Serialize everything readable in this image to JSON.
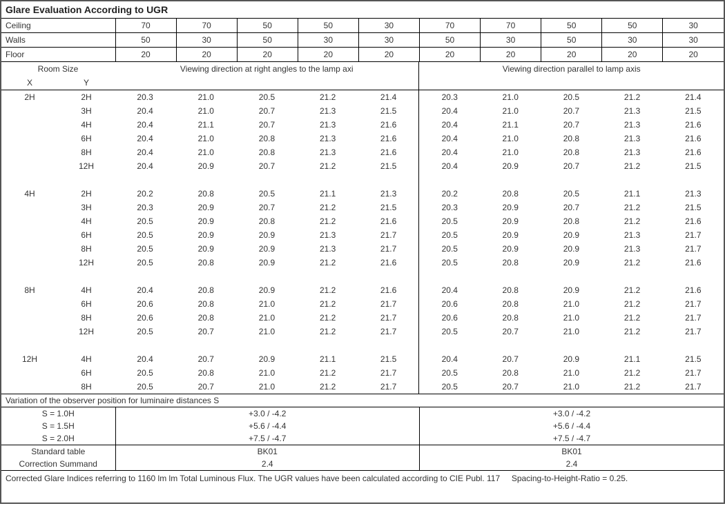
{
  "title": "Glare Evaluation According to UGR",
  "header_rows": [
    {
      "label": "Ceiling",
      "vals": [
        "70",
        "70",
        "50",
        "50",
        "30",
        "70",
        "70",
        "50",
        "50",
        "30"
      ]
    },
    {
      "label": "Walls",
      "vals": [
        "50",
        "30",
        "50",
        "30",
        "30",
        "50",
        "30",
        "50",
        "30",
        "30"
      ]
    },
    {
      "label": "Floor",
      "vals": [
        "20",
        "20",
        "20",
        "20",
        "20",
        "20",
        "20",
        "20",
        "20",
        "20"
      ]
    }
  ],
  "room_size_label": "Room Size",
  "x_label": "X",
  "y_label": "Y",
  "dir_left": "Viewing direction at right angles to the lamp axi",
  "dir_right": "Viewing direction parallel to lamp axis",
  "groups": [
    {
      "x": "2H",
      "rows": [
        {
          "y": "2H",
          "l": [
            "20.3",
            "21.0",
            "20.5",
            "21.2",
            "21.4"
          ],
          "r": [
            "20.3",
            "21.0",
            "20.5",
            "21.2",
            "21.4"
          ]
        },
        {
          "y": "3H",
          "l": [
            "20.4",
            "21.0",
            "20.7",
            "21.3",
            "21.5"
          ],
          "r": [
            "20.4",
            "21.0",
            "20.7",
            "21.3",
            "21.5"
          ]
        },
        {
          "y": "4H",
          "l": [
            "20.4",
            "21.1",
            "20.7",
            "21.3",
            "21.6"
          ],
          "r": [
            "20.4",
            "21.1",
            "20.7",
            "21.3",
            "21.6"
          ]
        },
        {
          "y": "6H",
          "l": [
            "20.4",
            "21.0",
            "20.8",
            "21.3",
            "21.6"
          ],
          "r": [
            "20.4",
            "21.0",
            "20.8",
            "21.3",
            "21.6"
          ]
        },
        {
          "y": "8H",
          "l": [
            "20.4",
            "21.0",
            "20.8",
            "21.3",
            "21.6"
          ],
          "r": [
            "20.4",
            "21.0",
            "20.8",
            "21.3",
            "21.6"
          ]
        },
        {
          "y": "12H",
          "l": [
            "20.4",
            "20.9",
            "20.7",
            "21.2",
            "21.5"
          ],
          "r": [
            "20.4",
            "20.9",
            "20.7",
            "21.2",
            "21.5"
          ]
        }
      ]
    },
    {
      "x": "4H",
      "rows": [
        {
          "y": "2H",
          "l": [
            "20.2",
            "20.8",
            "20.5",
            "21.1",
            "21.3"
          ],
          "r": [
            "20.2",
            "20.8",
            "20.5",
            "21.1",
            "21.3"
          ]
        },
        {
          "y": "3H",
          "l": [
            "20.3",
            "20.9",
            "20.7",
            "21.2",
            "21.5"
          ],
          "r": [
            "20.3",
            "20.9",
            "20.7",
            "21.2",
            "21.5"
          ]
        },
        {
          "y": "4H",
          "l": [
            "20.5",
            "20.9",
            "20.8",
            "21.2",
            "21.6"
          ],
          "r": [
            "20.5",
            "20.9",
            "20.8",
            "21.2",
            "21.6"
          ]
        },
        {
          "y": "6H",
          "l": [
            "20.5",
            "20.9",
            "20.9",
            "21.3",
            "21.7"
          ],
          "r": [
            "20.5",
            "20.9",
            "20.9",
            "21.3",
            "21.7"
          ]
        },
        {
          "y": "8H",
          "l": [
            "20.5",
            "20.9",
            "20.9",
            "21.3",
            "21.7"
          ],
          "r": [
            "20.5",
            "20.9",
            "20.9",
            "21.3",
            "21.7"
          ]
        },
        {
          "y": "12H",
          "l": [
            "20.5",
            "20.8",
            "20.9",
            "21.2",
            "21.6"
          ],
          "r": [
            "20.5",
            "20.8",
            "20.9",
            "21.2",
            "21.6"
          ]
        }
      ]
    },
    {
      "x": "8H",
      "rows": [
        {
          "y": "4H",
          "l": [
            "20.4",
            "20.8",
            "20.9",
            "21.2",
            "21.6"
          ],
          "r": [
            "20.4",
            "20.8",
            "20.9",
            "21.2",
            "21.6"
          ]
        },
        {
          "y": "6H",
          "l": [
            "20.6",
            "20.8",
            "21.0",
            "21.2",
            "21.7"
          ],
          "r": [
            "20.6",
            "20.8",
            "21.0",
            "21.2",
            "21.7"
          ]
        },
        {
          "y": "8H",
          "l": [
            "20.6",
            "20.8",
            "21.0",
            "21.2",
            "21.7"
          ],
          "r": [
            "20.6",
            "20.8",
            "21.0",
            "21.2",
            "21.7"
          ]
        },
        {
          "y": "12H",
          "l": [
            "20.5",
            "20.7",
            "21.0",
            "21.2",
            "21.7"
          ],
          "r": [
            "20.5",
            "20.7",
            "21.0",
            "21.2",
            "21.7"
          ]
        }
      ]
    },
    {
      "x": "12H",
      "rows": [
        {
          "y": "4H",
          "l": [
            "20.4",
            "20.7",
            "20.9",
            "21.1",
            "21.5"
          ],
          "r": [
            "20.4",
            "20.7",
            "20.9",
            "21.1",
            "21.5"
          ]
        },
        {
          "y": "6H",
          "l": [
            "20.5",
            "20.8",
            "21.0",
            "21.2",
            "21.7"
          ],
          "r": [
            "20.5",
            "20.8",
            "21.0",
            "21.2",
            "21.7"
          ]
        },
        {
          "y": "8H",
          "l": [
            "20.5",
            "20.7",
            "21.0",
            "21.2",
            "21.7"
          ],
          "r": [
            "20.5",
            "20.7",
            "21.0",
            "21.2",
            "21.7"
          ]
        }
      ]
    }
  ],
  "variation_label": "Variation of the observer position for luminaire distances S",
  "s_rows": [
    {
      "label": "S = 1.0H",
      "left": "+3.0 / -4.2",
      "right": "+3.0 / -4.2"
    },
    {
      "label": "S = 1.5H",
      "left": "+5.6 / -4.4",
      "right": "+5.6 / -4.4"
    },
    {
      "label": "S = 2.0H",
      "left": "+7.5 / -4.7",
      "right": "+7.5 / -4.7"
    }
  ],
  "std_table_label": "Standard table",
  "std_table_left": "BK01",
  "std_table_right": "BK01",
  "corr_label": "Correction Summand",
  "corr_left": "2.4",
  "corr_right": "2.4",
  "footer_left": "Corrected Glare Indices referring to 1160 lm lm Total Luminous Flux. The UGR values have been calculated according to CIE Publ. 117",
  "footer_right": "Spacing-to-Height-Ratio = 0.25.",
  "colors": {
    "border": "#555555",
    "line": "#000000",
    "text": "#333333",
    "bg": "#ffffff"
  }
}
